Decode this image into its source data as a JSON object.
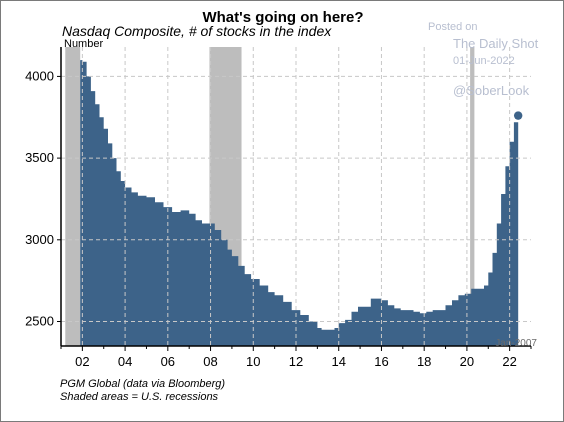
{
  "chart_data": {
    "type": "area",
    "title": "What's going on here?",
    "subtitle": "Nasdaq Composite, # of stocks in the index",
    "ylabel": "Number",
    "xlabel": "",
    "x_tick_labels": [
      "02",
      "04",
      "06",
      "08",
      "10",
      "12",
      "14",
      "16",
      "18",
      "20",
      "22"
    ],
    "y_tick_labels": [
      "2500",
      "3000",
      "3500",
      "4000"
    ],
    "xlim": [
      2001.0,
      2023.0
    ],
    "ylim": [
      2350,
      4180
    ],
    "recessions": [
      [
        2001.2,
        2001.9
      ],
      [
        2007.95,
        2009.45
      ],
      [
        2020.15,
        2020.35
      ]
    ],
    "series": [
      {
        "x": [
          2001.9,
          2002.0,
          2002.2,
          2002.4,
          2002.6,
          2002.8,
          2003.0,
          2003.2,
          2003.4,
          2003.6,
          2003.8,
          2004.0,
          2004.3,
          2004.6,
          2005.0,
          2005.4,
          2005.8,
          2006.2,
          2006.6,
          2007.0,
          2007.3,
          2007.6,
          2007.9,
          2008.2,
          2008.5,
          2008.8,
          2009.0,
          2009.3,
          2009.6,
          2009.9,
          2010.3,
          2010.7,
          2011.0,
          2011.4,
          2011.8,
          2012.2,
          2012.6,
          2013.0,
          2013.2,
          2013.5,
          2013.8,
          2014.0,
          2014.3,
          2014.6,
          2014.9,
          2015.2,
          2015.5,
          2015.8,
          2016.0,
          2016.3,
          2016.6,
          2016.9,
          2017.2,
          2017.5,
          2017.8,
          2018.1,
          2018.4,
          2018.7,
          2019.0,
          2019.3,
          2019.6,
          2019.9,
          2020.2,
          2020.5,
          2020.8,
          2021.0,
          2021.2,
          2021.4,
          2021.6,
          2021.8,
          2022.0,
          2022.2,
          2022.4
        ],
        "values": [
          4100,
          4090,
          4000,
          3910,
          3830,
          3750,
          3680,
          3590,
          3500,
          3420,
          3360,
          3320,
          3290,
          3270,
          3260,
          3230,
          3200,
          3170,
          3180,
          3160,
          3120,
          3100,
          3100,
          3060,
          3000,
          2940,
          2900,
          2840,
          2790,
          2760,
          2720,
          2680,
          2660,
          2620,
          2570,
          2540,
          2500,
          2460,
          2450,
          2450,
          2460,
          2490,
          2510,
          2560,
          2590,
          2590,
          2640,
          2640,
          2630,
          2600,
          2580,
          2570,
          2570,
          2560,
          2550,
          2560,
          2570,
          2570,
          2600,
          2630,
          2660,
          2670,
          2700,
          2700,
          2720,
          2800,
          2920,
          3100,
          3280,
          3450,
          3600,
          3720,
          3760
        ]
      }
    ]
  },
  "watermark": {
    "posted_on": "Posted on",
    "source": "The Daily Shot",
    "date": "01-Jun-2022",
    "handle": "@SoberLook"
  },
  "overlay_label": "Jan-2007",
  "footnotes": {
    "source": "PGM Global (data via Bloomberg)",
    "shading": "Shaded areas = U.S. recessions"
  },
  "colors": {
    "area": "#3d6389",
    "recession": "#bdbdbd",
    "grid": "#c8c8c8",
    "endpoint": "#3d6389"
  }
}
